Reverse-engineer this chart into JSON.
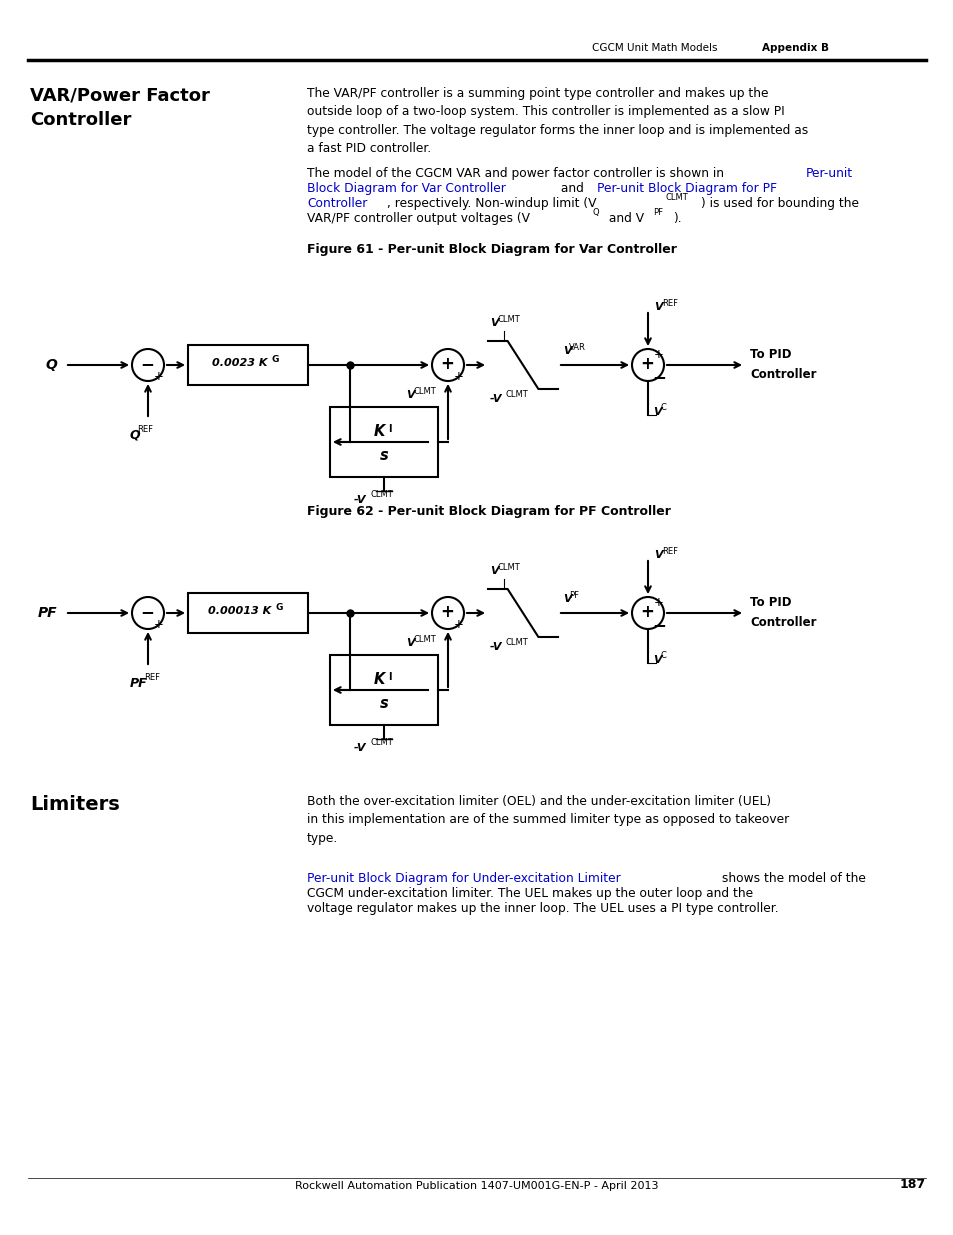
{
  "page_header_left": "CGCM Unit Math Models",
  "page_header_right": "Appendix B",
  "section_title_line1": "VAR/Power Factor",
  "section_title_line2": "Controller",
  "para1": "The VAR/PF controller is a summing point type controller and makes up the\noutside loop of a two-loop system. This controller is implemented as a slow PI\ntype controller. The voltage regulator forms the inner loop and is implemented as\na fast PID controller.",
  "fig61_caption": "Figure 61 - Per-unit Block Diagram for Var Controller",
  "fig62_caption": "Figure 62 - Per-unit Block Diagram for PF Controller",
  "limiters_title": "Limiters",
  "limiters_para1": "Both the over-excitation limiter (OEL) and the under-excitation limiter (UEL)\nin this implementation are of the summed limiter type as opposed to takeover\ntype.",
  "limiters_link": "Per-unit Block Diagram for Under-excitation Limiter",
  "footer": "Rockwell Automation Publication 1407-UM001G-EN-P - April 2013",
  "page_num": "187",
  "bg_color": "#ffffff",
  "text_color": "#000000",
  "link_color": "#0000cc"
}
